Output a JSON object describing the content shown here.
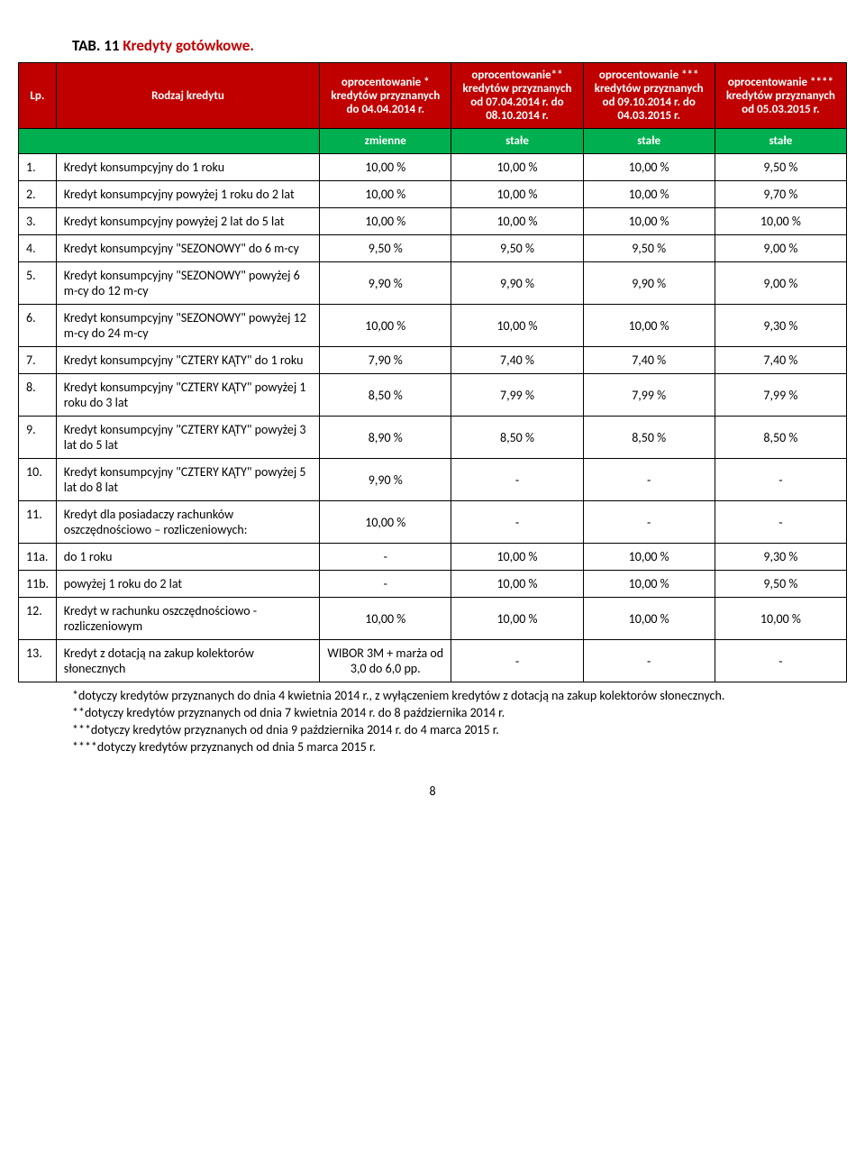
{
  "title_prefix": "TAB. 11",
  "title_main": "Kredyty gotówkowe.",
  "header": {
    "lp": "Lp.",
    "name": "Rodzaj kredytu",
    "col1": "oprocentowanie * kredytów przyznanych do 04.04.2014 r.",
    "col2": "oprocentowanie** kredytów przyznanych od 07.04.2014 r. do 08.10.2014 r.",
    "col3": "oprocentowanie *** kredytów przyznanych od 09.10.2014 r. do 04.03.2015 r.",
    "col4": "oprocentowanie **** kredytów przyznanych od 05.03.2015 r."
  },
  "sub": {
    "c1": "zmienne",
    "c2": "stałe",
    "c3": "stałe",
    "c4": "stałe"
  },
  "rows": [
    {
      "lp": "1.",
      "name": "Kredyt konsumpcyjny do 1 roku",
      "v": [
        "10,00 %",
        "10,00 %",
        "10,00 %",
        "9,50 %"
      ]
    },
    {
      "lp": "2.",
      "name": "Kredyt konsumpcyjny powyżej 1 roku do 2 lat",
      "v": [
        "10,00 %",
        "10,00 %",
        "10,00 %",
        "9,70 %"
      ]
    },
    {
      "lp": "3.",
      "name": "Kredyt konsumpcyjny powyżej 2 lat do 5 lat",
      "v": [
        "10,00 %",
        "10,00 %",
        "10,00 %",
        "10,00 %"
      ]
    },
    {
      "lp": "4.",
      "name": "Kredyt konsumpcyjny \"SEZONOWY\" do 6 m-cy",
      "v": [
        "9,50 %",
        "9,50 %",
        "9,50 %",
        "9,00 %"
      ]
    },
    {
      "lp": "5.",
      "name": "Kredyt konsumpcyjny \"SEZONOWY\" powyżej 6 m-cy do 12 m-cy",
      "v": [
        "9,90 %",
        "9,90 %",
        "9,90 %",
        "9,00 %"
      ]
    },
    {
      "lp": "6.",
      "name": "Kredyt konsumpcyjny \"SEZONOWY\" powyżej 12 m-cy do 24 m-cy",
      "v": [
        "10,00 %",
        "10,00 %",
        "10,00 %",
        "9,30 %"
      ]
    },
    {
      "lp": "7.",
      "name": "Kredyt konsumpcyjny \"CZTERY KĄTY\" do 1 roku",
      "v": [
        "7,90 %",
        "7,40 %",
        "7,40 %",
        "7,40 %"
      ]
    },
    {
      "lp": "8.",
      "name": "Kredyt konsumpcyjny \"CZTERY KĄTY\" powyżej 1 roku do 3 lat",
      "v": [
        "8,50 %",
        "7,99 %",
        "7,99 %",
        "7,99 %"
      ]
    },
    {
      "lp": "9.",
      "name": "Kredyt konsumpcyjny \"CZTERY KĄTY\" powyżej 3 lat do 5 lat",
      "v": [
        "8,90 %",
        "8,50 %",
        "8,50 %",
        "8,50 %"
      ]
    },
    {
      "lp": "10.",
      "name": "Kredyt konsumpcyjny \"CZTERY KĄTY\" powyżej 5 lat do 8 lat",
      "v": [
        "9,90 %",
        "-",
        "-",
        "-"
      ]
    },
    {
      "lp": "11.",
      "name": "Kredyt dla posiadaczy rachunków oszczędnościowo – rozliczeniowych:",
      "v": [
        "10,00 %",
        "-",
        "-",
        "-"
      ]
    },
    {
      "lp": "11a.",
      "name": "do 1 roku",
      "v": [
        "-",
        "10,00 %",
        "10,00 %",
        "9,30 %"
      ]
    },
    {
      "lp": "11b.",
      "name": "powyżej 1 roku do 2 lat",
      "v": [
        "-",
        "10,00 %",
        "10,00 %",
        "9,50 %"
      ]
    },
    {
      "lp": "12.",
      "name": "Kredyt w rachunku oszczędnościowo - rozliczeniowym",
      "v": [
        "10,00 %",
        "10,00 %",
        "10,00 %",
        "10,00 %"
      ]
    },
    {
      "lp": "13.",
      "name": "Kredyt z dotacją na zakup kolektorów słonecznych",
      "v": [
        "WIBOR 3M + marża od 3,0 do 6,0 pp.",
        "-",
        "-",
        "-"
      ]
    }
  ],
  "footnotes": [
    "*dotyczy kredytów przyznanych do dnia 4 kwietnia 2014 r., z wyłączeniem kredytów z dotacją na zakup kolektorów słonecznych.",
    "**dotyczy kredytów przyznanych od dnia 7 kwietnia 2014 r. do 8 października 2014 r.",
    "***dotyczy kredytów przyznanych od dnia 9 października 2014 r. do 4 marca 2015 r.",
    "****dotyczy kredytów przyznanych od dnia 5 marca 2015 r."
  ],
  "page_number": "8"
}
